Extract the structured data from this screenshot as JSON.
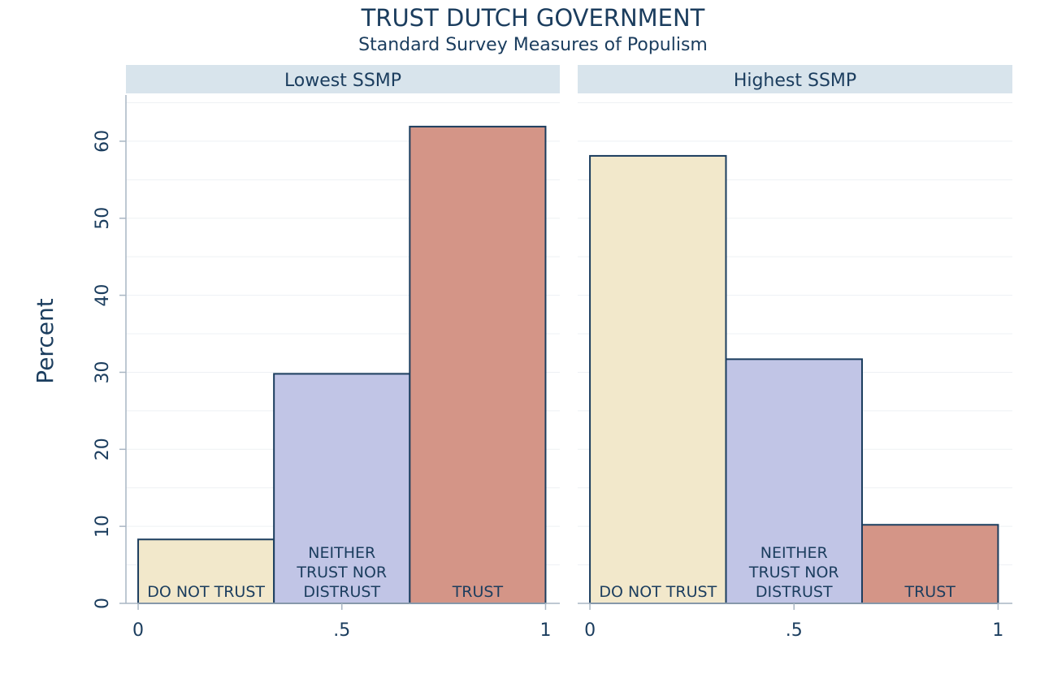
{
  "chart_data": {
    "type": "bar",
    "title": "TRUST DUTCH GOVERNMENT",
    "subtitle": "Standard Survey Measures of Populism",
    "ylabel": "Percent",
    "xlabel": "",
    "ylim": [
      0,
      66
    ],
    "yticks": [
      0,
      10,
      20,
      30,
      40,
      50,
      60
    ],
    "xlim": [
      -0.03,
      1.035
    ],
    "xticks": [
      {
        "value": 0,
        "label": "0"
      },
      {
        "value": 0.5,
        "label": ".5"
      },
      {
        "value": 1,
        "label": "1"
      }
    ],
    "grid": true,
    "bar_edges": [
      0,
      0.3333,
      0.6667,
      1
    ],
    "categories": [
      {
        "name": "DO NOT TRUST",
        "lines": [
          "DO NOT TRUST"
        ],
        "color": "#f2e8cb"
      },
      {
        "name": "NEITHER TRUST NOR DISTRUST",
        "lines": [
          "NEITHER",
          "TRUST NOR",
          "DISTRUST"
        ],
        "color": "#c1c5e6"
      },
      {
        "name": "TRUST",
        "lines": [
          "TRUST"
        ],
        "color": "#d49587"
      }
    ],
    "panels": [
      {
        "name": "Lowest SSMP",
        "values": [
          8.3,
          29.8,
          61.9
        ]
      },
      {
        "name": "Highest SSMP",
        "values": [
          58.1,
          31.7,
          10.2
        ]
      }
    ]
  },
  "colors": {
    "text": "#1b3d5e",
    "strip": "#d8e4ec",
    "grid": "#eef1f4",
    "bar_edge": "#1b3d5e",
    "axis": "#a9b6c3"
  }
}
